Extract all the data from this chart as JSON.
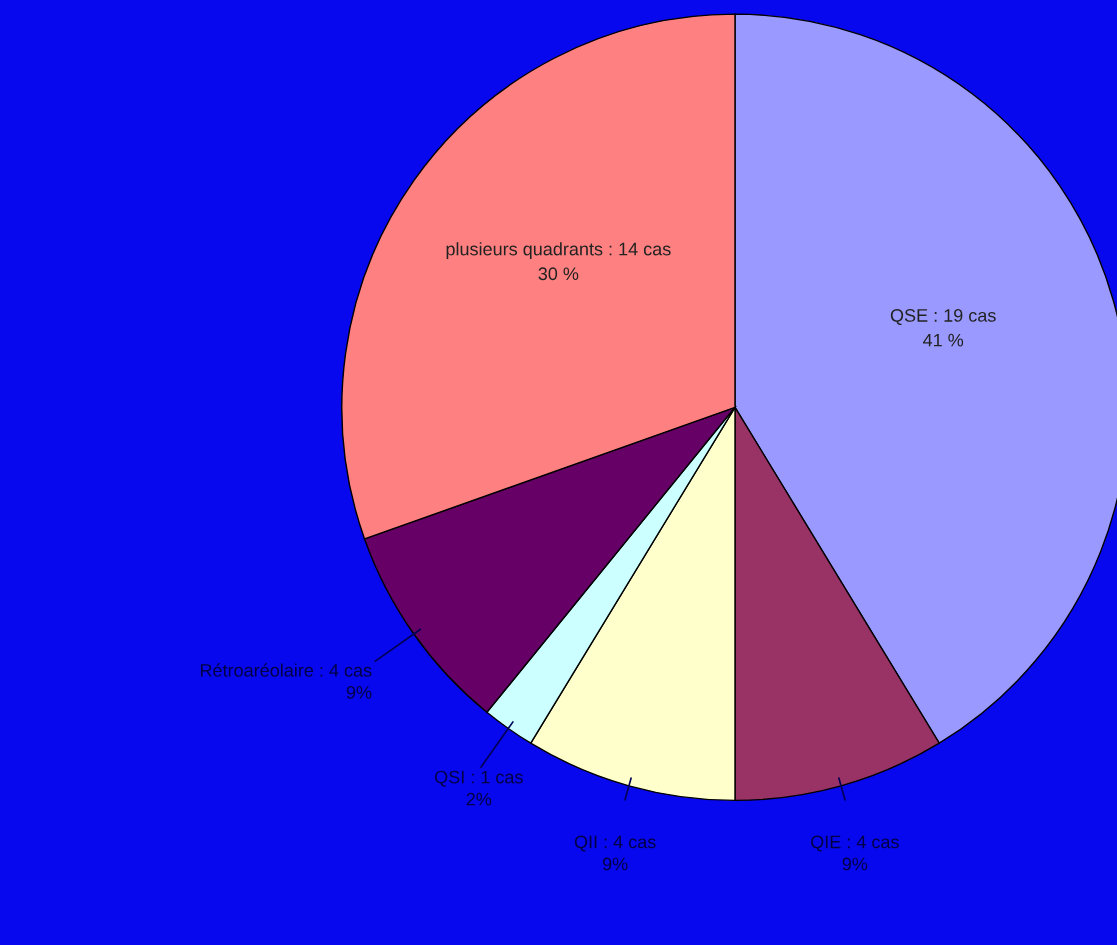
{
  "chart_data": {
    "type": "pie",
    "categories": [
      "QSE",
      "QIE",
      "QII",
      "QSI",
      "Rétroaréolaire",
      "plusieurs quadrants"
    ],
    "values": [
      19,
      4,
      4,
      1,
      4,
      14
    ],
    "value_labels": [
      "19 cas\n41 %",
      "4 cas\n9%",
      "4 cas\n9%",
      "1 cas\n2%",
      "4 cas\n9%",
      "14 cas\n30 %"
    ],
    "colors": [
      "#9999ff",
      "#993366",
      "#ffffcc",
      "#ccffff",
      "#660066",
      "#ff8080"
    ],
    "legend": false
  }
}
